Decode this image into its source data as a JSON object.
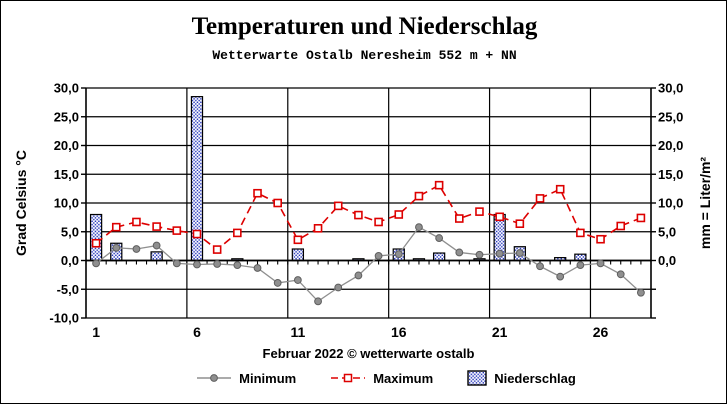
{
  "title": "Temperaturen und Niederschlag",
  "subtitle": "Wetterwarte Ostalb Neresheim 552 m + NN",
  "caption": "Februar 2022  © wetterwarte ostalb",
  "axes": {
    "left_title": "Grad Celsius °C",
    "right_title": "mm = Liter/m²",
    "y_tick_labels_left": [
      "30,0",
      "25,0",
      "20,0",
      "15,0",
      "10,0",
      "5,0",
      "0,0",
      "-5,0",
      "-10,0"
    ],
    "y_tick_labels_right": [
      "30,0",
      "25,0",
      "20,0",
      "15,0",
      "10,0",
      "5,0",
      "0,0"
    ],
    "x_tick_labels": [
      "1",
      "6",
      "11",
      "16",
      "21",
      "26"
    ]
  },
  "legend": [
    {
      "label": "Minimum",
      "marker": "gray-line-circle-icon",
      "color": "#8f8f8f"
    },
    {
      "label": "Maximum",
      "marker": "red-dashed-square-icon",
      "color": "#dd0000"
    },
    {
      "label": "Niederschlag",
      "marker": "blue-hatch-box-icon",
      "color": "#2233bb"
    }
  ],
  "chart_data": {
    "type": "line+bar",
    "title": "Temperaturen und Niederschlag",
    "subtitle": "Wetterwarte Ostalb Neresheim 552 m + NN",
    "xlabel": "Februar 2022  © wetterwarte ostalb",
    "ylabel_left": "Grad Celsius °C",
    "ylabel_right": "mm = Liter/m²",
    "x": [
      1,
      2,
      3,
      4,
      5,
      6,
      7,
      8,
      9,
      10,
      11,
      12,
      13,
      14,
      15,
      16,
      17,
      18,
      19,
      20,
      21,
      22,
      23,
      24,
      25,
      26,
      27,
      28
    ],
    "x_labeled_days": [
      1,
      6,
      11,
      16,
      21,
      26
    ],
    "grid_after_days": [
      5,
      10,
      15,
      20,
      25
    ],
    "ylim": [
      -10,
      30
    ],
    "y_step": 5,
    "right_axis_label_min": 0,
    "legend_position": "bottom",
    "series": [
      {
        "name": "Minimum",
        "type": "line",
        "color": "#8f8f8f",
        "values": [
          -0.5,
          2.2,
          2.0,
          2.6,
          -0.5,
          -0.7,
          -0.6,
          -0.8,
          -1.3,
          -3.9,
          -3.4,
          -7.1,
          -4.7,
          -2.6,
          0.8,
          1.1,
          5.8,
          3.9,
          1.4,
          1.0,
          1.2,
          1.3,
          -1.0,
          -2.8,
          -0.8,
          -0.5,
          -2.4,
          -5.6
        ]
      },
      {
        "name": "Maximum",
        "type": "line",
        "color": "#dd0000",
        "values": [
          3.0,
          5.8,
          6.7,
          5.9,
          5.2,
          4.6,
          1.9,
          4.8,
          11.7,
          10.0,
          3.6,
          5.6,
          9.5,
          7.9,
          6.7,
          8.0,
          11.2,
          13.1,
          7.3,
          8.5,
          7.6,
          6.4,
          10.8,
          12.4,
          4.8,
          3.7,
          6.0,
          7.4
        ]
      },
      {
        "name": "Niederschlag",
        "type": "bar",
        "color": "#2233bb",
        "values": [
          8.0,
          3.0,
          0,
          1.5,
          0,
          28.5,
          0,
          0.3,
          0,
          0,
          2.0,
          0,
          0,
          0.3,
          0,
          2.0,
          0.3,
          1.3,
          0,
          0.3,
          8.0,
          2.4,
          0,
          0.5,
          1.1,
          0,
          0,
          0
        ]
      }
    ]
  }
}
